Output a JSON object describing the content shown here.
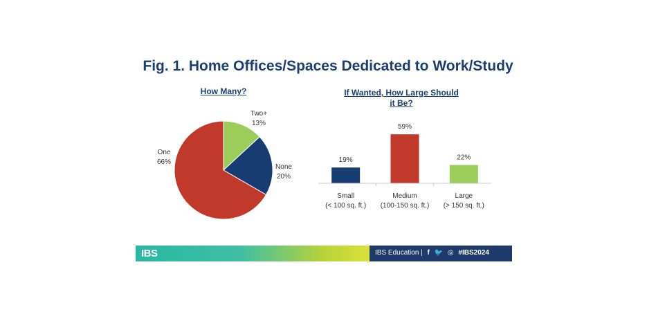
{
  "title": "Fig. 1. Home Offices/Spaces Dedicated to Work/Study",
  "footer": {
    "logo": "IBS",
    "text": "IBS Education |",
    "social_facebook": "f",
    "social_twitter": "🐦",
    "social_instagram": "◎",
    "hashtag": "#IBS2024"
  },
  "chart_data": [
    {
      "type": "pie",
      "title": "How Many?",
      "slices": [
        {
          "label": "Two+",
          "value": 13,
          "value_label": "13%",
          "color": "#9ccc5a"
        },
        {
          "label": "None",
          "value": 20,
          "value_label": "20%",
          "color": "#173c72"
        },
        {
          "label": "One",
          "value": 66,
          "value_label": "66%",
          "color": "#c0392b"
        }
      ]
    },
    {
      "type": "bar",
      "title": "If Wanted, How Large Should it Be?",
      "categories": [
        [
          "Small",
          "(< 100 sq. ft.)"
        ],
        [
          "Medium",
          "(100-150 sq. ft.)"
        ],
        [
          "Large",
          "(> 150 sq. ft.)"
        ]
      ],
      "values": [
        19,
        59,
        22
      ],
      "value_labels": [
        "19%",
        "59%",
        "22%"
      ],
      "colors": [
        "#173c72",
        "#c0392b",
        "#9ccc5a"
      ],
      "ylim": [
        0,
        60
      ]
    }
  ]
}
